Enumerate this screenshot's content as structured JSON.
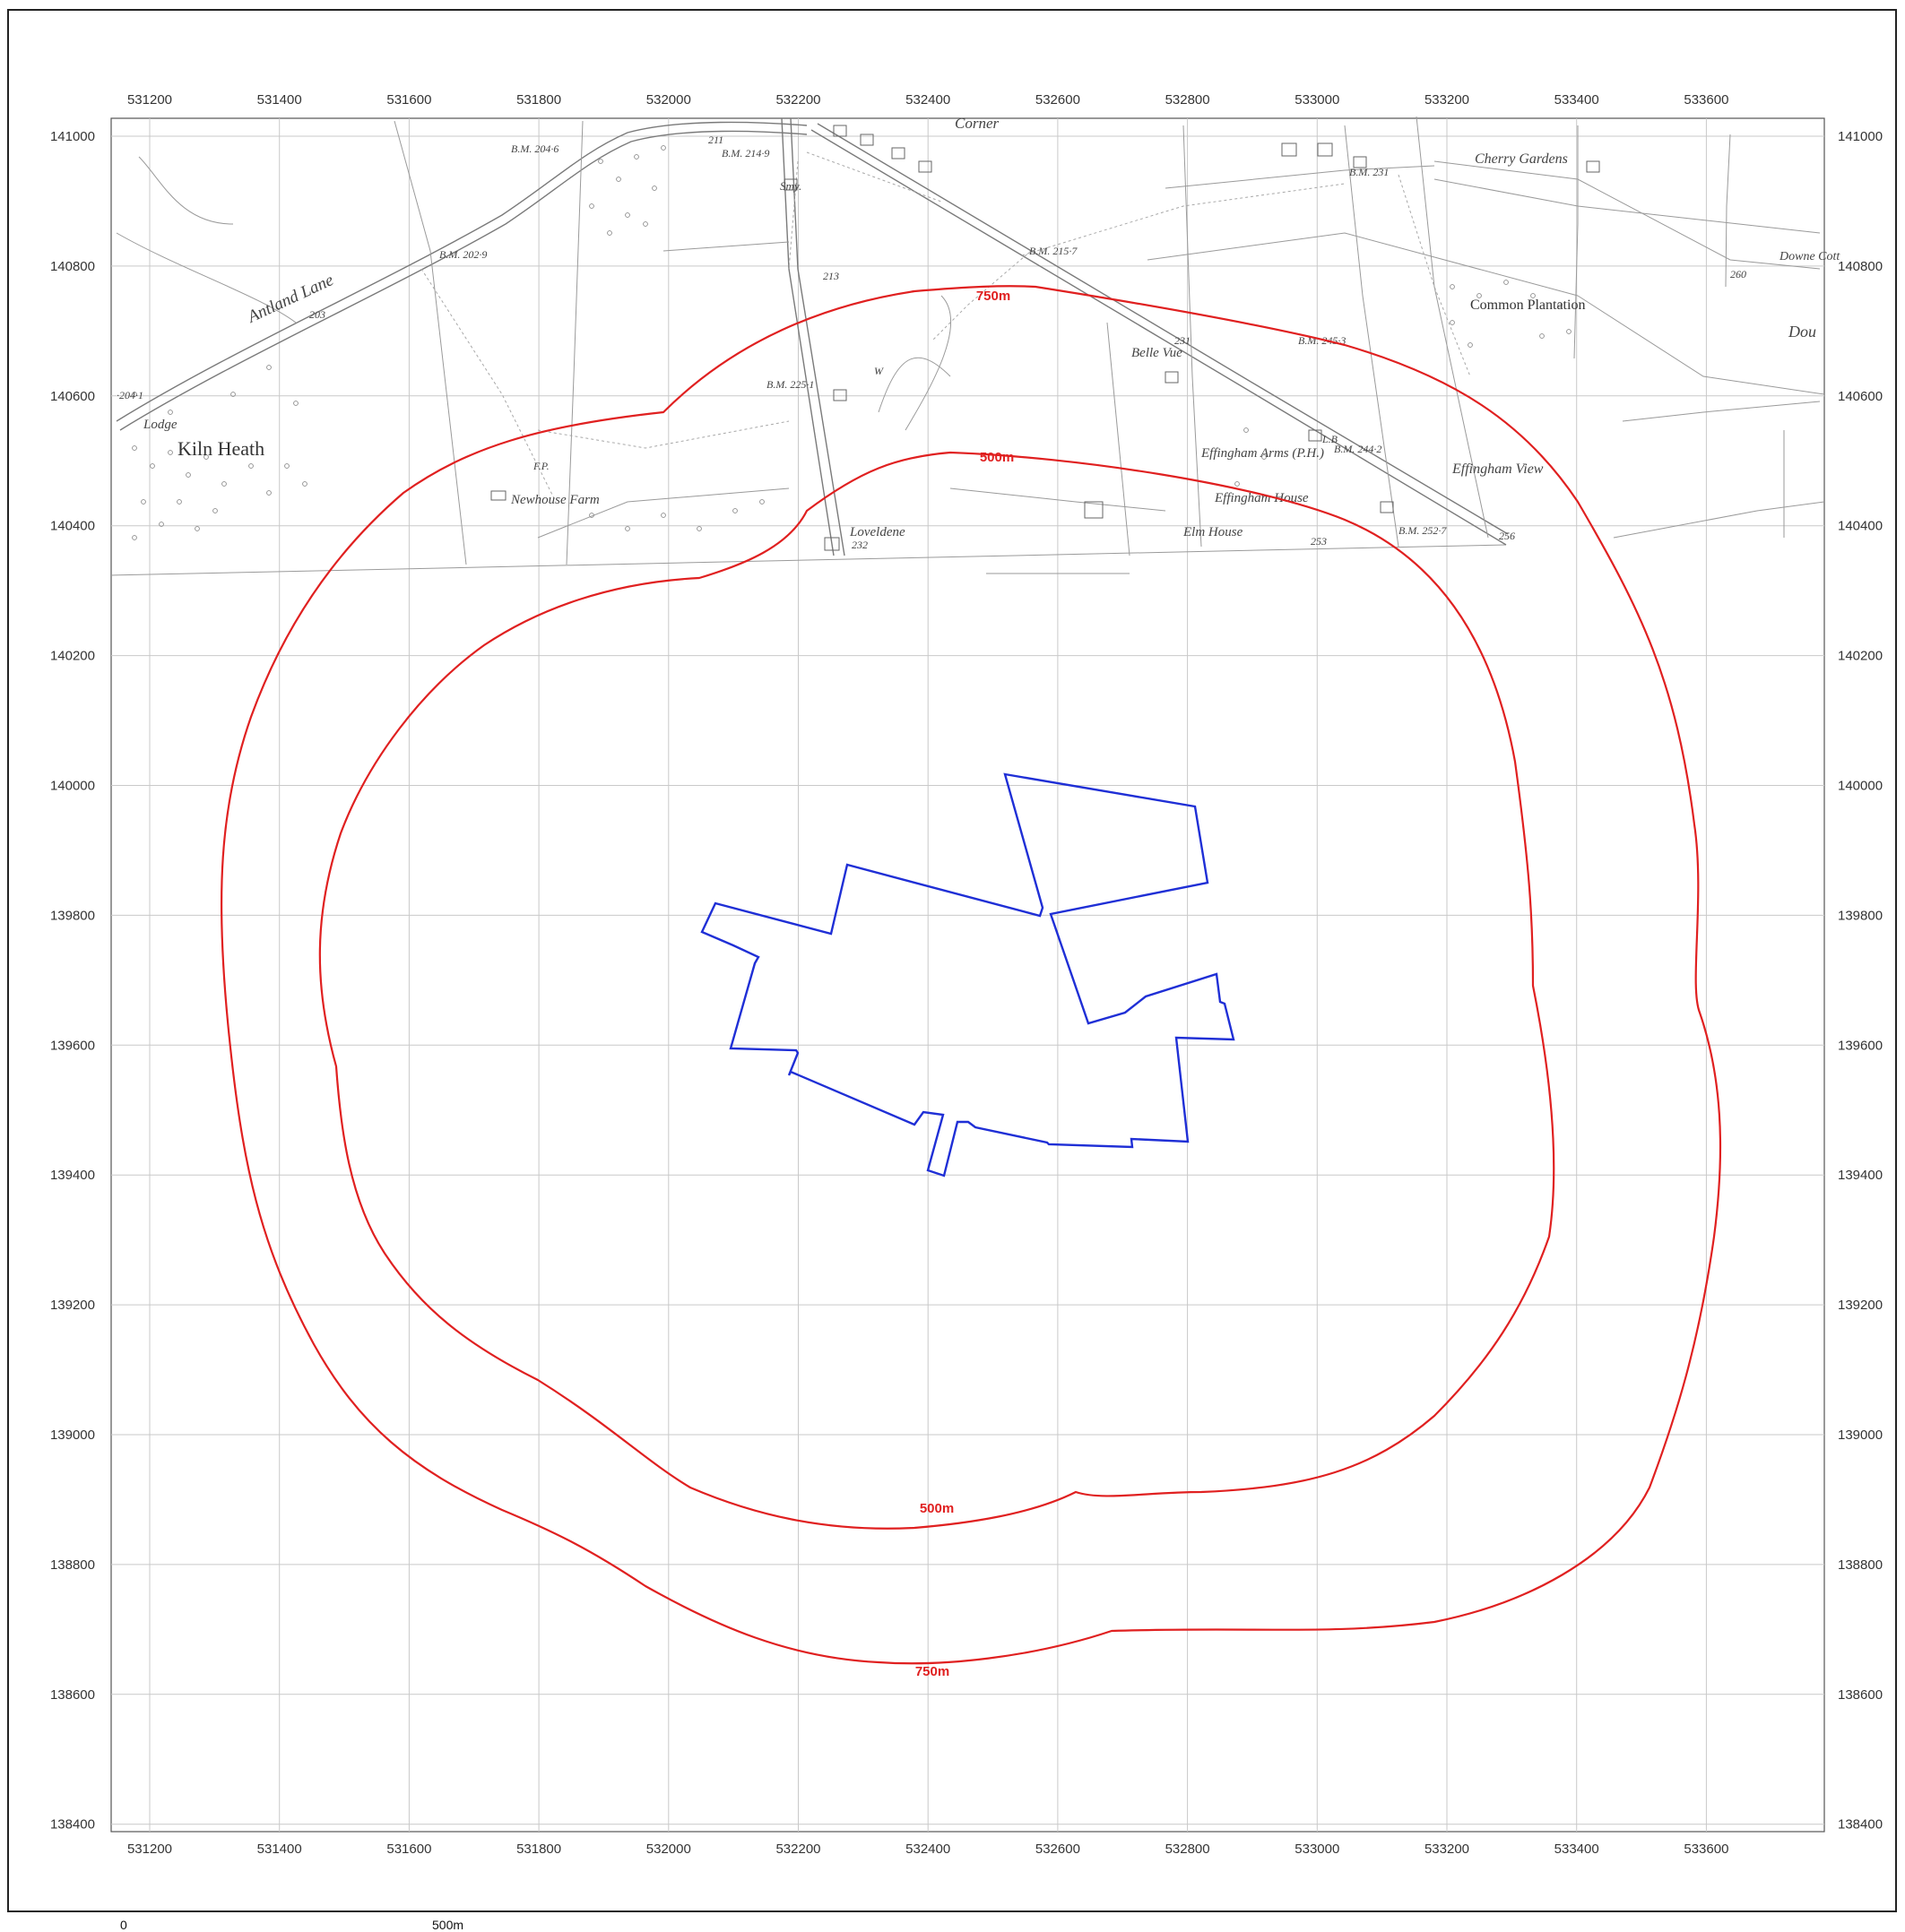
{
  "map": {
    "x_ticks": [
      "531200",
      "531400",
      "531600",
      "531800",
      "532000",
      "532200",
      "532400",
      "532600",
      "532800",
      "533000",
      "533200",
      "533400",
      "533600"
    ],
    "y_ticks": [
      "141000",
      "140800",
      "140600",
      "140400",
      "140200",
      "140000",
      "139800",
      "139600",
      "139400",
      "139200",
      "139000",
      "138800",
      "138600",
      "138400"
    ],
    "place_names": [
      "Kiln Heath",
      "Lodge",
      "Antland Lane",
      "Newhouse Farm",
      "Loveldene",
      "Corner",
      "Belle Vue",
      "Effingham Arms (P.H.)",
      "Effingham House",
      "Elm House",
      "Cherry Gardens",
      "Common Plantation",
      "Effingham View",
      "Downe Cott",
      "Dou",
      "Smy."
    ],
    "spot_heights": [
      "B.M. 204·6",
      "211",
      "B.M. 214·9",
      "B.M. 202·9",
      "203",
      "213",
      "B.M. 225·1",
      "B.M. 215·7",
      "231",
      "B.M. 245·3",
      "B.M. 244·2",
      "B.M. 252·7",
      "256",
      "253",
      "232",
      "B.M. 231",
      "260",
      "·204·1",
      "F.P.",
      "W",
      "L.B"
    ],
    "buffer_labels": [
      "750m",
      "500m",
      "500m",
      "750m"
    ],
    "scale_bar": {
      "start_label": "0",
      "end_label": "500m"
    },
    "colors": {
      "buffer": "#e02020",
      "site_boundary": "#1f2fd6",
      "grid": "#c9c9c9"
    }
  }
}
